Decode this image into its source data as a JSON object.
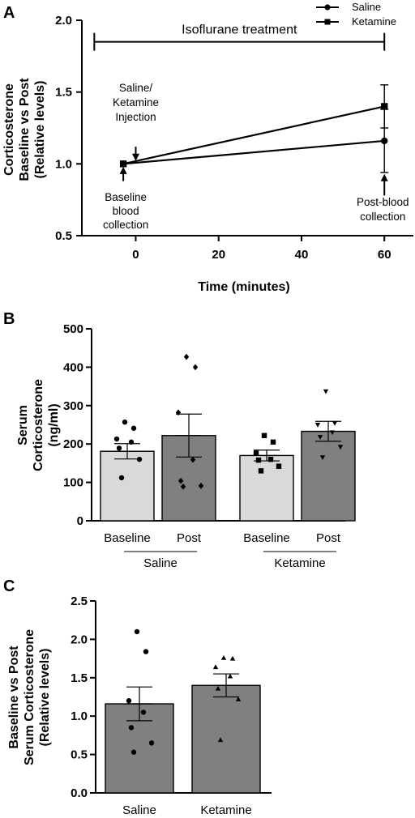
{
  "chart_data": [
    {
      "panel": "A",
      "type": "line",
      "ylabel": [
        "Corticosterone",
        "Baseline vs Post",
        "(Relative levels)"
      ],
      "xlabel": "Time (minutes)",
      "xticks": [
        "0",
        "20",
        "40",
        "60"
      ],
      "yticks": [
        "0.5",
        "1.0",
        "1.5",
        "2.0"
      ],
      "xlim": [
        -13,
        67
      ],
      "ylim": [
        0.5,
        2.0
      ],
      "series": [
        {
          "name": "Saline",
          "marker": "circle",
          "x": [
            -3,
            60
          ],
          "y": [
            1.0,
            1.16
          ],
          "err": [
            0,
            0.22
          ]
        },
        {
          "name": "Ketamine",
          "marker": "square",
          "x": [
            -3,
            60
          ],
          "y": [
            1.0,
            1.4
          ],
          "err": [
            0,
            0.15
          ]
        }
      ],
      "bracket": {
        "label": "Isoflurane treatment",
        "x_start": -10,
        "x_end": 60,
        "y": 1.85
      },
      "annotations": [
        {
          "lines": [
            "Saline/",
            "Ketamine",
            "Injection"
          ],
          "x": 0,
          "arrow_from": 1.12,
          "arrow_to": 1.02
        },
        {
          "lines": [
            "Baseline",
            "blood",
            "collection"
          ],
          "x": -3,
          "arrow_from": 0.88,
          "arrow_to": 0.98
        },
        {
          "lines": [
            "Post-blood",
            "collection"
          ],
          "x": 60,
          "arrow_from": 0.78,
          "arrow_to": 0.93
        }
      ]
    },
    {
      "panel": "B",
      "type": "bar",
      "ylabel": [
        "Serum",
        "Corticosterone",
        "(ng/ml)"
      ],
      "ylim": [
        0,
        500
      ],
      "yticks": [
        "0",
        "100",
        "200",
        "300",
        "400",
        "500"
      ],
      "bars": [
        {
          "label": "Baseline",
          "value": 181,
          "sem": 20,
          "fill": "#d9d9d9",
          "marker": "circle",
          "points": [
            257,
            241,
            213,
            205,
            189,
            160,
            112
          ]
        },
        {
          "label": "Post",
          "value": 222,
          "sem": 56,
          "fill": "#808080",
          "marker": "diamond",
          "points": [
            427,
            400,
            282,
            159,
            104,
            91,
            89
          ]
        },
        {
          "label": "Baseline",
          "value": 170,
          "sem": 14,
          "fill": "#d9d9d9",
          "marker": "square",
          "points": [
            222,
            205,
            176,
            160,
            158,
            142,
            130
          ]
        },
        {
          "label": "Post",
          "value": 233,
          "sem": 26,
          "fill": "#808080",
          "marker": "triangle-down",
          "points": [
            337,
            254,
            250,
            230,
            218,
            192,
            165
          ]
        }
      ],
      "groups": [
        {
          "label": "Saline"
        },
        {
          "label": "Ketamine"
        }
      ]
    },
    {
      "panel": "C",
      "type": "bar",
      "ylabel": [
        "Baseline vs Post",
        "Serum Corticosterone",
        "(Relative levels)"
      ],
      "ylim": [
        0,
        2.5
      ],
      "yticks": [
        "0.0",
        "0.5",
        "1.0",
        "1.5",
        "2.0",
        "2.5"
      ],
      "bars": [
        {
          "label": "Saline",
          "value": 1.16,
          "sem": 0.22,
          "fill": "#808080",
          "marker": "circle",
          "points": [
            2.1,
            1.84,
            1.2,
            1.05,
            0.85,
            0.65,
            0.53
          ]
        },
        {
          "label": "Ketamine",
          "value": 1.4,
          "sem": 0.15,
          "fill": "#808080",
          "marker": "triangle-up",
          "points": [
            1.76,
            1.75,
            1.64,
            1.52,
            1.36,
            1.22,
            0.69
          ]
        }
      ]
    }
  ]
}
